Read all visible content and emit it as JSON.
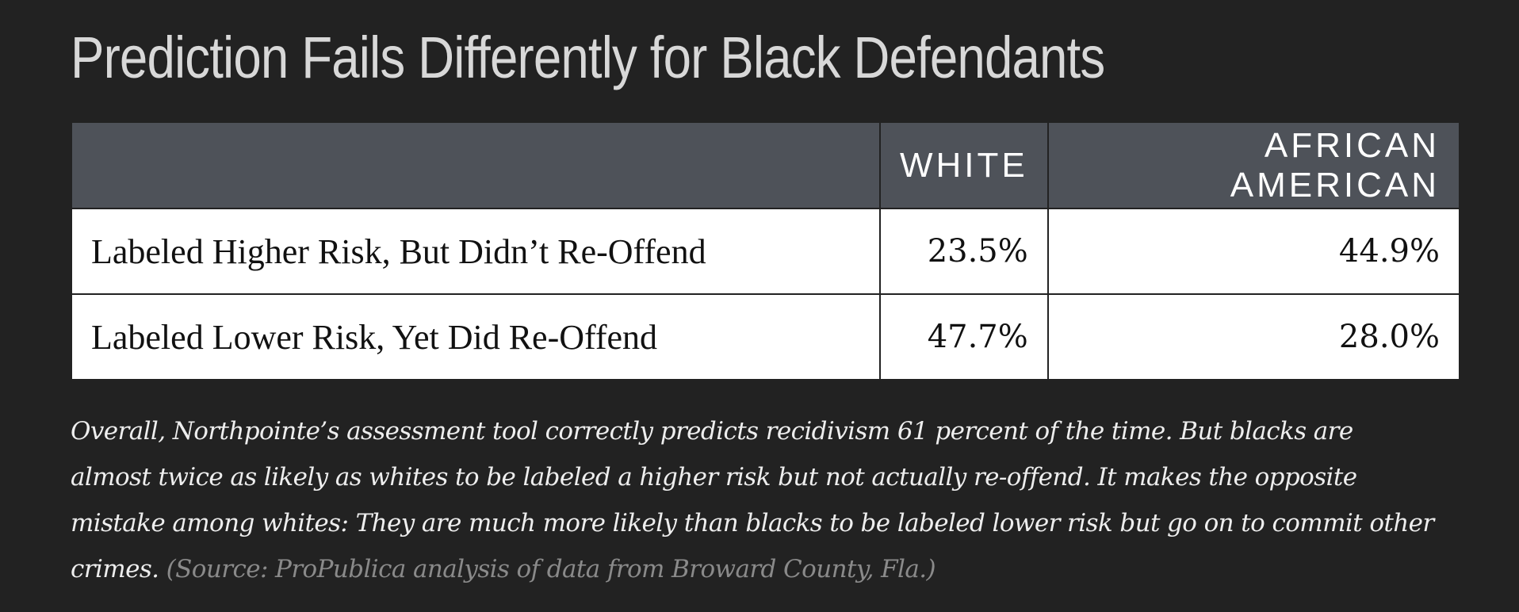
{
  "header": {
    "title": "Prediction Fails Differently for Black Defendants"
  },
  "table": {
    "columns": [
      "WHITE",
      "AFRICAN AMERICAN"
    ],
    "rows": [
      [
        "Labeled Higher Risk, But Didn’t Re-Offend",
        "23.5%",
        "44.9%"
      ],
      [
        "Labeled Lower Risk, Yet Did Re-Offend",
        "47.7%",
        "28.0%"
      ]
    ]
  },
  "caption": {
    "text": "Overall, Northpointe’s assessment tool correctly predicts recidivism 61 percent of the time. But blacks are almost twice as likely as whites to be labeled a higher risk but not actually re-offend. It makes the opposite mistake among whites: They are much more likely than blacks to be labeled lower risk but go on to commit other crimes.",
    "source": "(Source: ProPublica analysis of data from Broward County, Fla.)"
  }
}
